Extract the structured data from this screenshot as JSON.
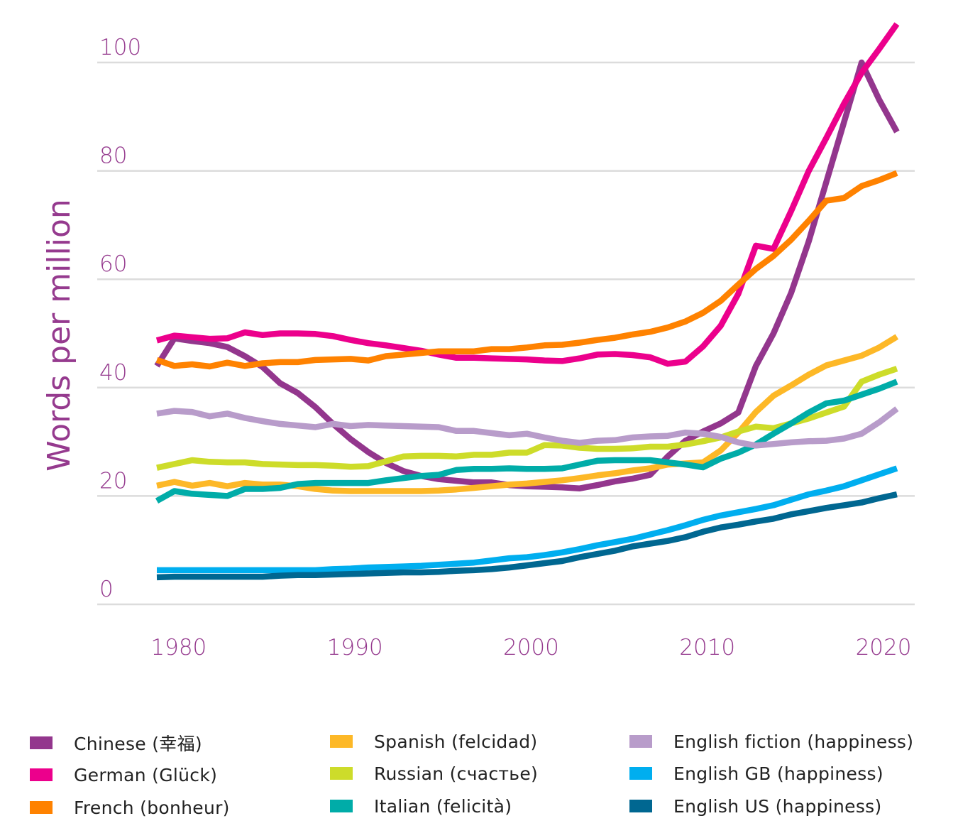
{
  "chart_data": {
    "type": "line",
    "title": "",
    "xlabel": "",
    "ylabel": "Words per million",
    "ylim": [
      0,
      100
    ],
    "yticks": [
      0,
      20,
      40,
      60,
      80,
      100
    ],
    "xticks": [
      1980,
      1990,
      2000,
      2010,
      2020
    ],
    "grid": "horizontal",
    "legend_position": "bottom",
    "x": [
      1979,
      1980,
      1981,
      1982,
      1983,
      1984,
      1985,
      1986,
      1987,
      1988,
      1989,
      1990,
      1991,
      1992,
      1993,
      1994,
      1995,
      1996,
      1997,
      1998,
      1999,
      2000,
      2001,
      2002,
      2003,
      2004,
      2005,
      2006,
      2007,
      2008,
      2009,
      2010,
      2011,
      2012,
      2013,
      2014,
      2015,
      2016,
      2017,
      2018,
      2019,
      2020,
      2021
    ],
    "series": [
      {
        "name": "Chinese (幸福)",
        "color": "#93368d",
        "values": [
          44.0,
          49.1,
          48.6,
          48.2,
          47.5,
          45.8,
          43.8,
          40.8,
          39.0,
          36.4,
          33.3,
          30.5,
          28.1,
          26.1,
          24.6,
          23.7,
          23.1,
          22.8,
          22.5,
          22.5,
          22.0,
          21.8,
          21.7,
          21.6,
          21.4,
          22.0,
          22.7,
          23.2,
          23.9,
          27.3,
          30.2,
          31.9,
          33.4,
          35.4,
          44.0,
          50.0,
          57.5,
          67.0,
          78.0,
          89.0,
          100.0,
          93.1,
          87.2
        ]
      },
      {
        "name": "German (Glück)",
        "color": "#ec008c",
        "values": [
          48.7,
          49.6,
          49.3,
          49.0,
          49.1,
          50.2,
          49.7,
          50.0,
          50.0,
          49.9,
          49.5,
          48.8,
          48.2,
          47.8,
          47.3,
          46.8,
          46.1,
          45.5,
          45.5,
          45.4,
          45.3,
          45.2,
          45.0,
          44.9,
          45.4,
          46.1,
          46.2,
          46.0,
          45.6,
          44.4,
          44.8,
          47.6,
          51.4,
          57.3,
          66.2,
          65.6,
          72.6,
          80.0,
          86.1,
          92.4,
          98.1,
          102.5,
          107.1
        ]
      },
      {
        "name": "French (bonheur)",
        "color": "#ff8200",
        "values": [
          45.1,
          44.0,
          44.3,
          43.9,
          44.6,
          44.0,
          44.5,
          44.7,
          44.7,
          45.1,
          45.2,
          45.3,
          45.0,
          45.8,
          46.1,
          46.4,
          46.7,
          46.7,
          46.7,
          47.1,
          47.1,
          47.4,
          47.8,
          47.9,
          48.3,
          48.8,
          49.2,
          49.8,
          50.3,
          51.1,
          52.2,
          53.8,
          56.0,
          59.0,
          61.9,
          64.3,
          67.3,
          70.8,
          74.5,
          75.0,
          77.2,
          78.3,
          79.6
        ]
      },
      {
        "name": "Spanish (felcidad)",
        "color": "#fdb827",
        "values": [
          21.9,
          22.6,
          21.9,
          22.4,
          21.8,
          22.4,
          22.1,
          22.1,
          21.8,
          21.3,
          21.0,
          20.9,
          20.9,
          20.9,
          20.9,
          20.9,
          21.0,
          21.2,
          21.5,
          21.8,
          22.1,
          22.3,
          22.6,
          22.9,
          23.3,
          23.8,
          24.2,
          24.7,
          25.1,
          25.8,
          26.0,
          26.2,
          28.4,
          31.7,
          35.5,
          38.5,
          40.4,
          42.4,
          44.1,
          45.0,
          45.9,
          47.4,
          49.4
        ]
      },
      {
        "name": "Russian (счастье)",
        "color": "#cddc2a",
        "values": [
          25.2,
          25.9,
          26.6,
          26.3,
          26.2,
          26.2,
          25.9,
          25.8,
          25.7,
          25.7,
          25.6,
          25.4,
          25.5,
          26.4,
          27.3,
          27.4,
          27.4,
          27.3,
          27.6,
          27.6,
          28.0,
          28.0,
          29.4,
          29.3,
          28.9,
          28.7,
          28.7,
          28.8,
          29.1,
          29.1,
          29.5,
          30.1,
          30.8,
          31.9,
          32.8,
          32.5,
          33.4,
          34.3,
          35.4,
          36.5,
          41.1,
          42.4,
          43.5
        ]
      },
      {
        "name": "Italian (felicità)",
        "color": "#00aca8",
        "values": [
          19.1,
          20.9,
          20.4,
          20.2,
          20.0,
          21.3,
          21.3,
          21.5,
          22.2,
          22.4,
          22.4,
          22.4,
          22.4,
          22.9,
          23.3,
          23.7,
          23.9,
          24.8,
          25.0,
          25.0,
          25.1,
          25.0,
          25.0,
          25.1,
          25.8,
          26.5,
          26.6,
          26.6,
          26.6,
          26.2,
          25.8,
          25.3,
          26.9,
          28.0,
          29.5,
          31.5,
          33.4,
          35.4,
          37.1,
          37.6,
          38.7,
          39.8,
          41.1
        ]
      },
      {
        "name": "English fiction (happiness)",
        "color": "#b89cca",
        "values": [
          35.2,
          35.7,
          35.5,
          34.7,
          35.2,
          34.4,
          33.8,
          33.3,
          33.0,
          32.7,
          33.3,
          32.9,
          33.1,
          33.0,
          32.9,
          32.8,
          32.7,
          32.0,
          32.0,
          31.6,
          31.2,
          31.5,
          30.8,
          30.2,
          29.8,
          30.2,
          30.3,
          30.8,
          31.0,
          31.1,
          31.7,
          31.5,
          30.9,
          29.9,
          29.3,
          29.6,
          29.9,
          30.1,
          30.2,
          30.6,
          31.5,
          33.6,
          36.1
        ]
      },
      {
        "name": "English GB (happiness)",
        "color": "#00aeef",
        "values": [
          6.3,
          6.3,
          6.3,
          6.3,
          6.3,
          6.3,
          6.3,
          6.3,
          6.3,
          6.3,
          6.5,
          6.6,
          6.8,
          6.9,
          7.0,
          7.1,
          7.3,
          7.5,
          7.7,
          8.1,
          8.5,
          8.7,
          9.1,
          9.6,
          10.2,
          10.9,
          11.5,
          12.1,
          12.9,
          13.7,
          14.6,
          15.6,
          16.4,
          17.0,
          17.6,
          18.3,
          19.3,
          20.3,
          21.0,
          21.8,
          22.9,
          24.0,
          25.1
        ]
      },
      {
        "name": "English US (happiness)",
        "color": "#006791",
        "values": [
          5.0,
          5.1,
          5.1,
          5.1,
          5.1,
          5.1,
          5.1,
          5.3,
          5.4,
          5.4,
          5.5,
          5.6,
          5.7,
          5.8,
          5.9,
          5.9,
          6.0,
          6.2,
          6.3,
          6.5,
          6.8,
          7.2,
          7.6,
          8.0,
          8.7,
          9.3,
          9.9,
          10.7,
          11.2,
          11.7,
          12.4,
          13.4,
          14.2,
          14.7,
          15.3,
          15.8,
          16.6,
          17.2,
          17.8,
          18.3,
          18.8,
          19.6,
          20.3
        ]
      }
    ]
  }
}
